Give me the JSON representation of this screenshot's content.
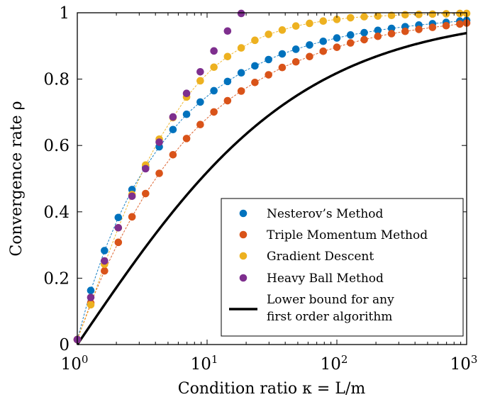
{
  "chart_data": {
    "type": "scatter",
    "xscale": "log",
    "xlim": [
      1,
      1000
    ],
    "ylim": [
      0,
      1
    ],
    "xlabel": "Condition ratio κ = L/m",
    "ylabel": "Convergence rate ρ",
    "grid": false,
    "legend_position": "bottom-right",
    "x_ticks": [
      1,
      10,
      100,
      1000
    ],
    "x_tick_labels": [
      {
        "base": "10",
        "exp": "0"
      },
      {
        "base": "10",
        "exp": "1"
      },
      {
        "base": "10",
        "exp": "2"
      },
      {
        "base": "10",
        "exp": "3"
      }
    ],
    "y_ticks": [
      0,
      0.2,
      0.4,
      0.6,
      0.8,
      1
    ],
    "y_tick_labels": [
      "0",
      "0.2",
      "0.4",
      "0.6",
      "0.8",
      "1"
    ],
    "series": [
      {
        "name": "Nesterov’s Method",
        "color": "#0072BD",
        "marker": "circle",
        "dashed_line": true,
        "points": [
          [
            1.0,
            0.015
          ],
          [
            1.27,
            0.163
          ],
          [
            1.62,
            0.283
          ],
          [
            2.07,
            0.383
          ],
          [
            2.64,
            0.467
          ],
          [
            3.36,
            0.535
          ],
          [
            4.28,
            0.596
          ],
          [
            5.46,
            0.648
          ],
          [
            6.95,
            0.694
          ],
          [
            8.86,
            0.731
          ],
          [
            11.29,
            0.765
          ],
          [
            14.38,
            0.793
          ],
          [
            18.33,
            0.819
          ],
          [
            23.36,
            0.84
          ],
          [
            29.76,
            0.859
          ],
          [
            37.93,
            0.876
          ],
          [
            48.33,
            0.89
          ],
          [
            61.58,
            0.903
          ],
          [
            78.48,
            0.914
          ],
          [
            100.0,
            0.924
          ],
          [
            127.4,
            0.933
          ],
          [
            162.4,
            0.94
          ],
          [
            206.9,
            0.947
          ],
          [
            263.7,
            0.953
          ],
          [
            335.9,
            0.958
          ],
          [
            428.1,
            0.963
          ],
          [
            545.6,
            0.967
          ],
          [
            695.2,
            0.971
          ],
          [
            885.9,
            0.975
          ],
          [
            1000.0,
            0.977
          ]
        ]
      },
      {
        "name": "Triple Momentum Method",
        "color": "#D95319",
        "marker": "circle",
        "dashed_line": true,
        "points": [
          [
            1.0,
            0.015
          ],
          [
            1.27,
            0.125
          ],
          [
            1.62,
            0.222
          ],
          [
            2.07,
            0.308
          ],
          [
            2.64,
            0.385
          ],
          [
            3.36,
            0.455
          ],
          [
            4.28,
            0.516
          ],
          [
            5.46,
            0.572
          ],
          [
            6.95,
            0.621
          ],
          [
            8.86,
            0.663
          ],
          [
            11.29,
            0.701
          ],
          [
            14.38,
            0.735
          ],
          [
            18.33,
            0.764
          ],
          [
            23.36,
            0.79
          ],
          [
            29.76,
            0.813
          ],
          [
            37.93,
            0.835
          ],
          [
            48.33,
            0.852
          ],
          [
            61.58,
            0.868
          ],
          [
            78.48,
            0.884
          ],
          [
            100.0,
            0.896
          ],
          [
            127.4,
            0.909
          ],
          [
            162.4,
            0.919
          ],
          [
            206.9,
            0.929
          ],
          [
            263.7,
            0.937
          ],
          [
            335.9,
            0.944
          ],
          [
            428.1,
            0.95
          ],
          [
            545.6,
            0.956
          ],
          [
            695.2,
            0.961
          ],
          [
            885.9,
            0.966
          ],
          [
            1000.0,
            0.969
          ]
        ]
      },
      {
        "name": "Gradient Descent",
        "color": "#EDB120",
        "marker": "circle",
        "dashed_line": true,
        "points": [
          [
            1.0,
            0.015
          ],
          [
            1.27,
            0.12
          ],
          [
            1.62,
            0.242
          ],
          [
            2.07,
            0.352
          ],
          [
            2.64,
            0.452
          ],
          [
            3.36,
            0.541
          ],
          [
            4.28,
            0.619
          ],
          [
            5.46,
            0.684
          ],
          [
            6.95,
            0.746
          ],
          [
            8.86,
            0.795
          ],
          [
            11.29,
            0.836
          ],
          [
            14.38,
            0.868
          ],
          [
            18.33,
            0.894
          ],
          [
            23.36,
            0.917
          ],
          [
            29.76,
            0.935
          ],
          [
            37.93,
            0.948
          ],
          [
            48.33,
            0.96
          ],
          [
            61.58,
            0.968
          ],
          [
            78.48,
            0.975
          ],
          [
            100.0,
            0.98
          ],
          [
            127.4,
            0.985
          ],
          [
            162.4,
            0.988
          ],
          [
            206.9,
            0.99
          ],
          [
            263.7,
            0.992
          ],
          [
            335.9,
            0.994
          ],
          [
            428.1,
            0.995
          ],
          [
            545.6,
            0.996
          ],
          [
            695.2,
            0.997
          ],
          [
            885.9,
            0.998
          ],
          [
            1000.0,
            0.998
          ]
        ]
      },
      {
        "name": "Heavy Ball Method",
        "color": "#7E2F8E",
        "marker": "circle",
        "dashed_line": false,
        "points": [
          [
            1.0,
            0.015
          ],
          [
            1.27,
            0.142
          ],
          [
            1.62,
            0.252
          ],
          [
            2.07,
            0.352
          ],
          [
            2.64,
            0.447
          ],
          [
            3.36,
            0.53
          ],
          [
            4.28,
            0.61
          ],
          [
            5.46,
            0.686
          ],
          [
            6.95,
            0.757
          ],
          [
            8.86,
            0.822
          ],
          [
            11.29,
            0.885
          ],
          [
            14.38,
            0.945
          ],
          [
            18.33,
            0.998
          ]
        ]
      },
      {
        "name": "Lower bound for any first order algorithm",
        "name_lines": [
          "Lower bound for any",
          "first order algorithm"
        ],
        "color": "#000000",
        "marker": "none",
        "line": "solid",
        "formula": "ρ = (√κ − 1) / (√κ + 1)"
      }
    ]
  }
}
